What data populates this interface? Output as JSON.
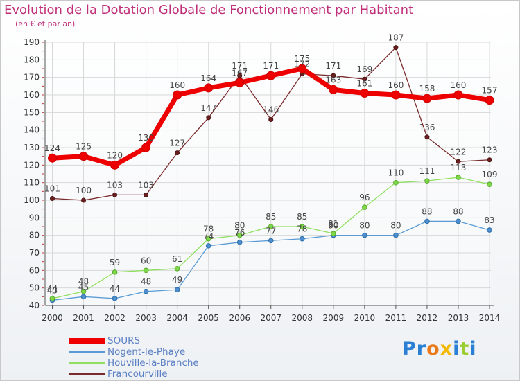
{
  "chart_data": {
    "type": "line",
    "title": "Evolution de la Dotation Globale de Fonctionnement par Habitant",
    "subtitle": "(en € et par an)",
    "x": [
      "2000",
      "2001",
      "2002",
      "2003",
      "2004",
      "2005",
      "2006",
      "2007",
      "2008",
      "2009",
      "2010",
      "2011",
      "2012",
      "2013",
      "2014"
    ],
    "ylim": [
      40,
      190
    ],
    "yticks": [
      40,
      50,
      60,
      70,
      80,
      90,
      100,
      110,
      120,
      130,
      140,
      150,
      160,
      170,
      180,
      190
    ],
    "grid": true,
    "legend_position": "bottom-left",
    "series": [
      {
        "name": "SOURS",
        "color": "#ee0000",
        "values": [
          124,
          125,
          120,
          130,
          160,
          164,
          167,
          171,
          175,
          163,
          161,
          160,
          158,
          160,
          157
        ]
      },
      {
        "name": "Nogent-le-Phaye",
        "color": "#5a9bd5",
        "values": [
          43,
          45,
          44,
          48,
          49,
          74,
          76,
          77,
          78,
          80,
          80,
          80,
          88,
          88,
          83
        ]
      },
      {
        "name": "Houville-la-Branche",
        "color": "#90e060",
        "values": [
          44,
          48,
          59,
          60,
          61,
          78,
          80,
          85,
          85,
          81,
          96,
          110,
          111,
          113,
          109
        ]
      },
      {
        "name": "Francourville",
        "color": "#7a2a2a",
        "values": [
          101,
          100,
          103,
          103,
          127,
          147,
          171,
          146,
          172,
          171,
          169,
          187,
          136,
          122,
          123
        ]
      }
    ]
  },
  "logo": {
    "text": "Proxiti",
    "letters": [
      "P",
      "r",
      "o",
      "x",
      "i",
      "t",
      "i"
    ],
    "colors": [
      "#2a7fd4",
      "#2a7fd4",
      "#e87a1a",
      "#f5b800",
      "#2a7fd4",
      "#9acd32",
      "#2a7fd4"
    ]
  }
}
